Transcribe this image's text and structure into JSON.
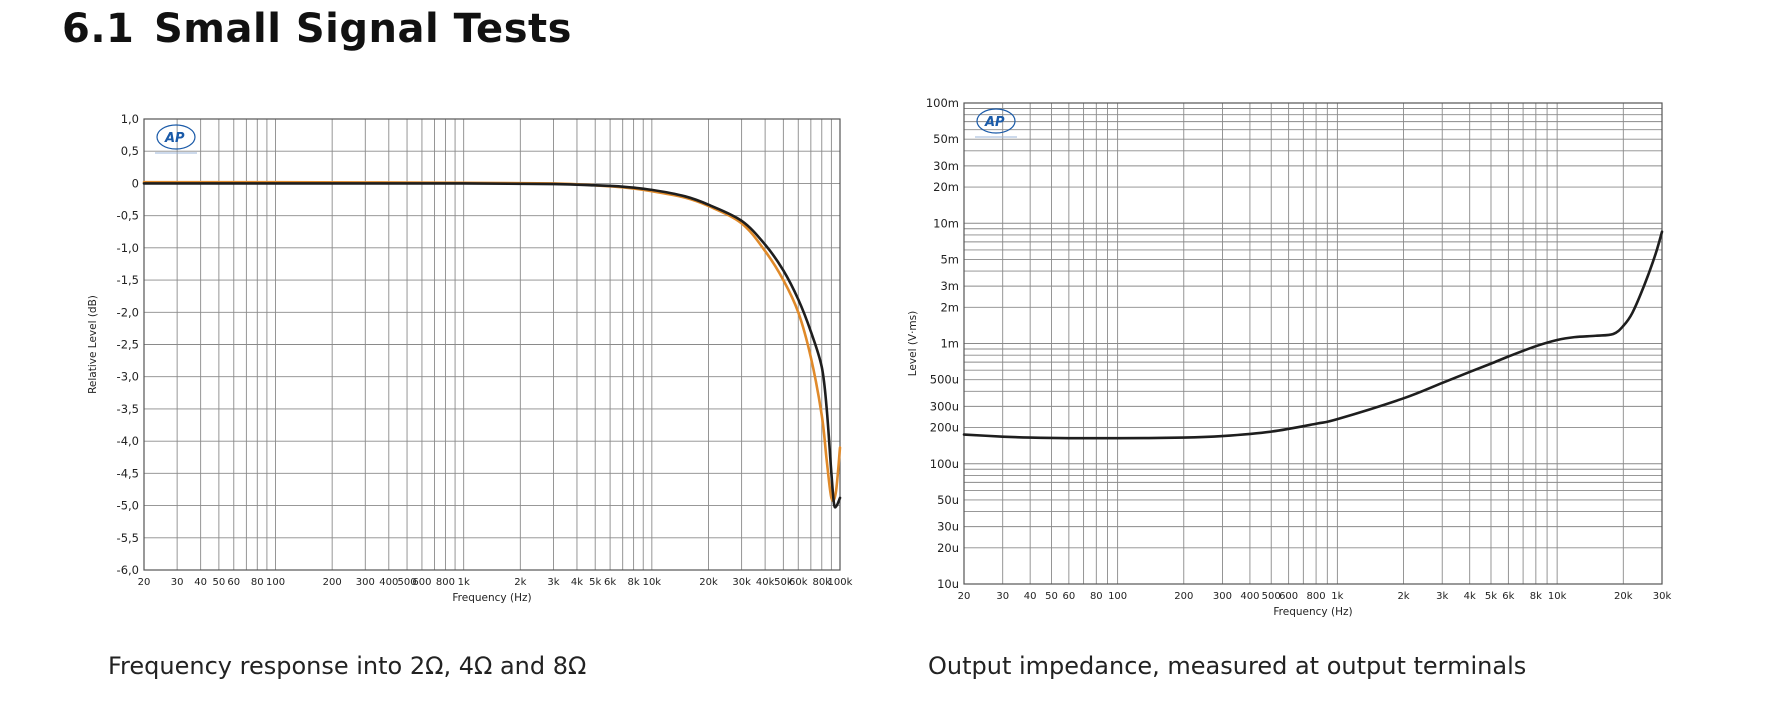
{
  "heading": {
    "number": "6.1",
    "title": "Small Signal Tests"
  },
  "captions": {
    "left": "Frequency response into 2Ω, 4Ω and 8Ω",
    "right": "Output impedance, measured at output terminals"
  },
  "logo": {
    "text": "AP"
  },
  "chart_data": [
    {
      "type": "line",
      "xscale": "log",
      "xlim": [
        20,
        100000
      ],
      "ylim": [
        -6.0,
        1.0
      ],
      "xlabel": "Frequency (Hz)",
      "ylabel": "Relative Level (dB)",
      "grid": true,
      "x_ticks": [
        {
          "v": 20,
          "label": "20"
        },
        {
          "v": 30,
          "label": "30"
        },
        {
          "v": 40,
          "label": "40"
        },
        {
          "v": 50,
          "label": "50"
        },
        {
          "v": 60,
          "label": "60"
        },
        {
          "v": 80,
          "label": "80"
        },
        {
          "v": 100,
          "label": "100"
        },
        {
          "v": 200,
          "label": "200"
        },
        {
          "v": 300,
          "label": "300"
        },
        {
          "v": 400,
          "label": "400"
        },
        {
          "v": 500,
          "label": "500"
        },
        {
          "v": 600,
          "label": "600"
        },
        {
          "v": 800,
          "label": "800"
        },
        {
          "v": 1000,
          "label": "1k"
        },
        {
          "v": 2000,
          "label": "2k"
        },
        {
          "v": 3000,
          "label": "3k"
        },
        {
          "v": 4000,
          "label": "4k"
        },
        {
          "v": 5000,
          "label": "5k"
        },
        {
          "v": 6000,
          "label": "6k"
        },
        {
          "v": 8000,
          "label": "8k"
        },
        {
          "v": 10000,
          "label": "10k"
        },
        {
          "v": 20000,
          "label": "20k"
        },
        {
          "v": 30000,
          "label": "30k"
        },
        {
          "v": 40000,
          "label": "40k"
        },
        {
          "v": 50000,
          "label": "50k"
        },
        {
          "v": 60000,
          "label": "60k"
        },
        {
          "v": 80000,
          "label": "80k"
        },
        {
          "v": 100000,
          "label": "100k"
        }
      ],
      "y_ticks": [
        {
          "v": 1.0,
          "label": "1,0"
        },
        {
          "v": 0.5,
          "label": "0,5"
        },
        {
          "v": 0,
          "label": "0"
        },
        {
          "v": -0.5,
          "label": "-0,5"
        },
        {
          "v": -1.0,
          "label": "-1,0"
        },
        {
          "v": -1.5,
          "label": "-1,5"
        },
        {
          "v": -2.0,
          "label": "-2,0"
        },
        {
          "v": -2.5,
          "label": "-2,5"
        },
        {
          "v": -3.0,
          "label": "-3,0"
        },
        {
          "v": -3.5,
          "label": "-3,5"
        },
        {
          "v": -4.0,
          "label": "-4,0"
        },
        {
          "v": -4.5,
          "label": "-4,5"
        },
        {
          "v": -5.0,
          "label": "-5,0"
        },
        {
          "v": -5.5,
          "label": "-5,5"
        },
        {
          "v": -6.0,
          "label": "-6,0"
        }
      ],
      "series": [
        {
          "color": "#e08a2a",
          "points": [
            [
              20,
              0.02
            ],
            [
              100,
              0.02
            ],
            [
              1000,
              0.01
            ],
            [
              3000,
              0.0
            ],
            [
              5000,
              -0.03
            ],
            [
              7000,
              -0.06
            ],
            [
              10000,
              -0.12
            ],
            [
              15000,
              -0.22
            ],
            [
              20000,
              -0.35
            ],
            [
              30000,
              -0.62
            ],
            [
              40000,
              -1.05
            ],
            [
              50000,
              -1.5
            ],
            [
              60000,
              -2.0
            ],
            [
              70000,
              -2.7
            ],
            [
              80000,
              -3.6
            ],
            [
              85000,
              -4.3
            ],
            [
              90000,
              -4.88
            ],
            [
              95000,
              -4.8
            ],
            [
              100000,
              -4.1
            ]
          ]
        },
        {
          "color": "#1e1e1e",
          "points": [
            [
              20,
              0.0
            ],
            [
              100,
              0.0
            ],
            [
              1000,
              0.0
            ],
            [
              3000,
              -0.01
            ],
            [
              5000,
              -0.03
            ],
            [
              7000,
              -0.05
            ],
            [
              10000,
              -0.1
            ],
            [
              15000,
              -0.2
            ],
            [
              20000,
              -0.33
            ],
            [
              30000,
              -0.58
            ],
            [
              40000,
              -0.95
            ],
            [
              50000,
              -1.35
            ],
            [
              60000,
              -1.8
            ],
            [
              70000,
              -2.3
            ],
            [
              80000,
              -2.85
            ],
            [
              85000,
              -3.5
            ],
            [
              90000,
              -4.5
            ],
            [
              93000,
              -4.98
            ],
            [
              96000,
              -5.0
            ],
            [
              100000,
              -4.88
            ]
          ]
        }
      ]
    },
    {
      "type": "line",
      "xscale": "log",
      "yscale": "log",
      "xlim": [
        20,
        30000
      ],
      "ylim": [
        1e-05,
        0.1
      ],
      "xlabel": "Frequency (Hz)",
      "ylabel": "Level (V·ms)",
      "grid": true,
      "x_ticks": [
        {
          "v": 20,
          "label": "20"
        },
        {
          "v": 30,
          "label": "30"
        },
        {
          "v": 40,
          "label": "40"
        },
        {
          "v": 50,
          "label": "50"
        },
        {
          "v": 60,
          "label": "60"
        },
        {
          "v": 80,
          "label": "80"
        },
        {
          "v": 100,
          "label": "100"
        },
        {
          "v": 200,
          "label": "200"
        },
        {
          "v": 300,
          "label": "300"
        },
        {
          "v": 400,
          "label": "400"
        },
        {
          "v": 500,
          "label": "500"
        },
        {
          "v": 600,
          "label": "600"
        },
        {
          "v": 800,
          "label": "800"
        },
        {
          "v": 1000,
          "label": "1k"
        },
        {
          "v": 2000,
          "label": "2k"
        },
        {
          "v": 3000,
          "label": "3k"
        },
        {
          "v": 4000,
          "label": "4k"
        },
        {
          "v": 5000,
          "label": "5k"
        },
        {
          "v": 6000,
          "label": "6k"
        },
        {
          "v": 8000,
          "label": "8k"
        },
        {
          "v": 10000,
          "label": "10k"
        },
        {
          "v": 20000,
          "label": "20k"
        },
        {
          "v": 30000,
          "label": "30k"
        }
      ],
      "y_ticks": [
        {
          "v": 0.1,
          "label": "100m"
        },
        {
          "v": 0.05,
          "label": "50m"
        },
        {
          "v": 0.03,
          "label": "30m"
        },
        {
          "v": 0.02,
          "label": "20m"
        },
        {
          "v": 0.01,
          "label": "10m"
        },
        {
          "v": 0.005,
          "label": "5m"
        },
        {
          "v": 0.003,
          "label": "3m"
        },
        {
          "v": 0.002,
          "label": "2m"
        },
        {
          "v": 0.001,
          "label": "1m"
        },
        {
          "v": 0.0005,
          "label": "500u"
        },
        {
          "v": 0.0003,
          "label": "300u"
        },
        {
          "v": 0.0002,
          "label": "200u"
        },
        {
          "v": 0.0001,
          "label": "100u"
        },
        {
          "v": 5e-05,
          "label": "50u"
        },
        {
          "v": 3e-05,
          "label": "30u"
        },
        {
          "v": 2e-05,
          "label": "20u"
        },
        {
          "v": 1e-05,
          "label": "10u"
        }
      ],
      "series": [
        {
          "color": "#1e1e1e",
          "points": [
            [
              20,
              0.000175
            ],
            [
              30,
              0.000168
            ],
            [
              40,
              0.000165
            ],
            [
              60,
              0.000163
            ],
            [
              100,
              0.000163
            ],
            [
              200,
              0.000165
            ],
            [
              300,
              0.00017
            ],
            [
              500,
              0.000185
            ],
            [
              800,
              0.000215
            ],
            [
              1000,
              0.000235
            ],
            [
              2000,
              0.00035
            ],
            [
              3000,
              0.00047
            ],
            [
              4000,
              0.00058
            ],
            [
              5000,
              0.00068
            ],
            [
              6000,
              0.00078
            ],
            [
              8000,
              0.00095
            ],
            [
              10000,
              0.00107
            ],
            [
              12000,
              0.00113
            ],
            [
              15000,
              0.00116
            ],
            [
              18000,
              0.0012
            ],
            [
              20000,
              0.0014
            ],
            [
              22000,
              0.0018
            ],
            [
              25000,
              0.0031
            ],
            [
              28000,
              0.0055
            ],
            [
              30000,
              0.0085
            ]
          ]
        }
      ]
    }
  ]
}
